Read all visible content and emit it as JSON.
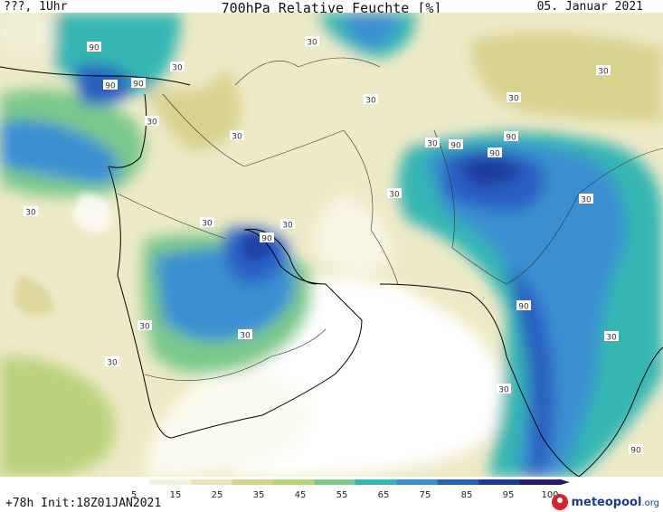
{
  "header": {
    "left": "???, 1Uhr",
    "title": "700hPa Relative Feuchte [%]",
    "date": "05. Januar 2021"
  },
  "footer": {
    "init": "+78h Init:18Z01JAN2021",
    "brand": "meteopool",
    "brand_suffix": ".org"
  },
  "legend": {
    "ticks": [
      "5",
      "15",
      "25",
      "35",
      "45",
      "55",
      "65",
      "75",
      "85",
      "95",
      "100"
    ],
    "colors": [
      "#ffffff",
      "#f4f1dc",
      "#e9e5b9",
      "#d8d28f",
      "#b9d27a",
      "#7cc98c",
      "#34b6b3",
      "#3a8fd1",
      "#2a5fc2",
      "#1f3a9e",
      "#2a1a6b"
    ]
  },
  "contour_labels": [
    {
      "text": "30"
    },
    {
      "text": "30"
    },
    {
      "text": "30"
    },
    {
      "text": "30"
    },
    {
      "text": "30"
    },
    {
      "text": "30"
    },
    {
      "text": "30"
    },
    {
      "text": "30"
    },
    {
      "text": "30"
    },
    {
      "text": "30"
    },
    {
      "text": "30"
    },
    {
      "text": "30"
    },
    {
      "text": "30"
    },
    {
      "text": "30"
    },
    {
      "text": "30"
    },
    {
      "text": "30"
    },
    {
      "text": "30"
    },
    {
      "text": "30"
    },
    {
      "text": "90"
    },
    {
      "text": "90"
    },
    {
      "text": "90"
    },
    {
      "text": "90"
    },
    {
      "text": "90"
    },
    {
      "text": "90"
    },
    {
      "text": "90"
    },
    {
      "text": "90"
    },
    {
      "text": "90"
    }
  ]
}
